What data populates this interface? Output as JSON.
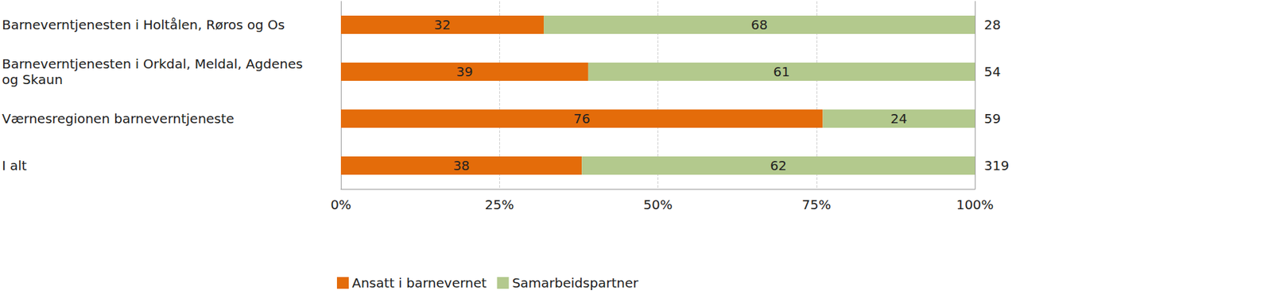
{
  "chart_data": {
    "type": "bar",
    "orientation": "horizontal",
    "stacked": true,
    "data_labels": true,
    "grid": true,
    "legend": "bottom left",
    "categories": [
      "Barneverntjenesten i Holtålen, Røros og Os",
      "Barneverntjenesten i Orkdal, Meldal, Agdenes og Skaun",
      "Værnesregionen barneverntjeneste",
      "I alt"
    ],
    "series": [
      {
        "name": "Ansatt i barnevernet",
        "color": "#e46c0a",
        "values": [
          32,
          39,
          76,
          38
        ]
      },
      {
        "name": "Samarbeidspartner",
        "color": "#b3c98d",
        "values": [
          68,
          61,
          24,
          62
        ]
      }
    ],
    "totals": [
      28,
      54,
      59,
      319
    ],
    "xlim": [
      0,
      100
    ],
    "xticks": [
      {
        "value": 0,
        "label": "0%"
      },
      {
        "value": 25,
        "label": "25%"
      },
      {
        "value": 50,
        "label": "50%"
      },
      {
        "value": 75,
        "label": "75%"
      },
      {
        "value": 100,
        "label": "100%"
      }
    ]
  }
}
